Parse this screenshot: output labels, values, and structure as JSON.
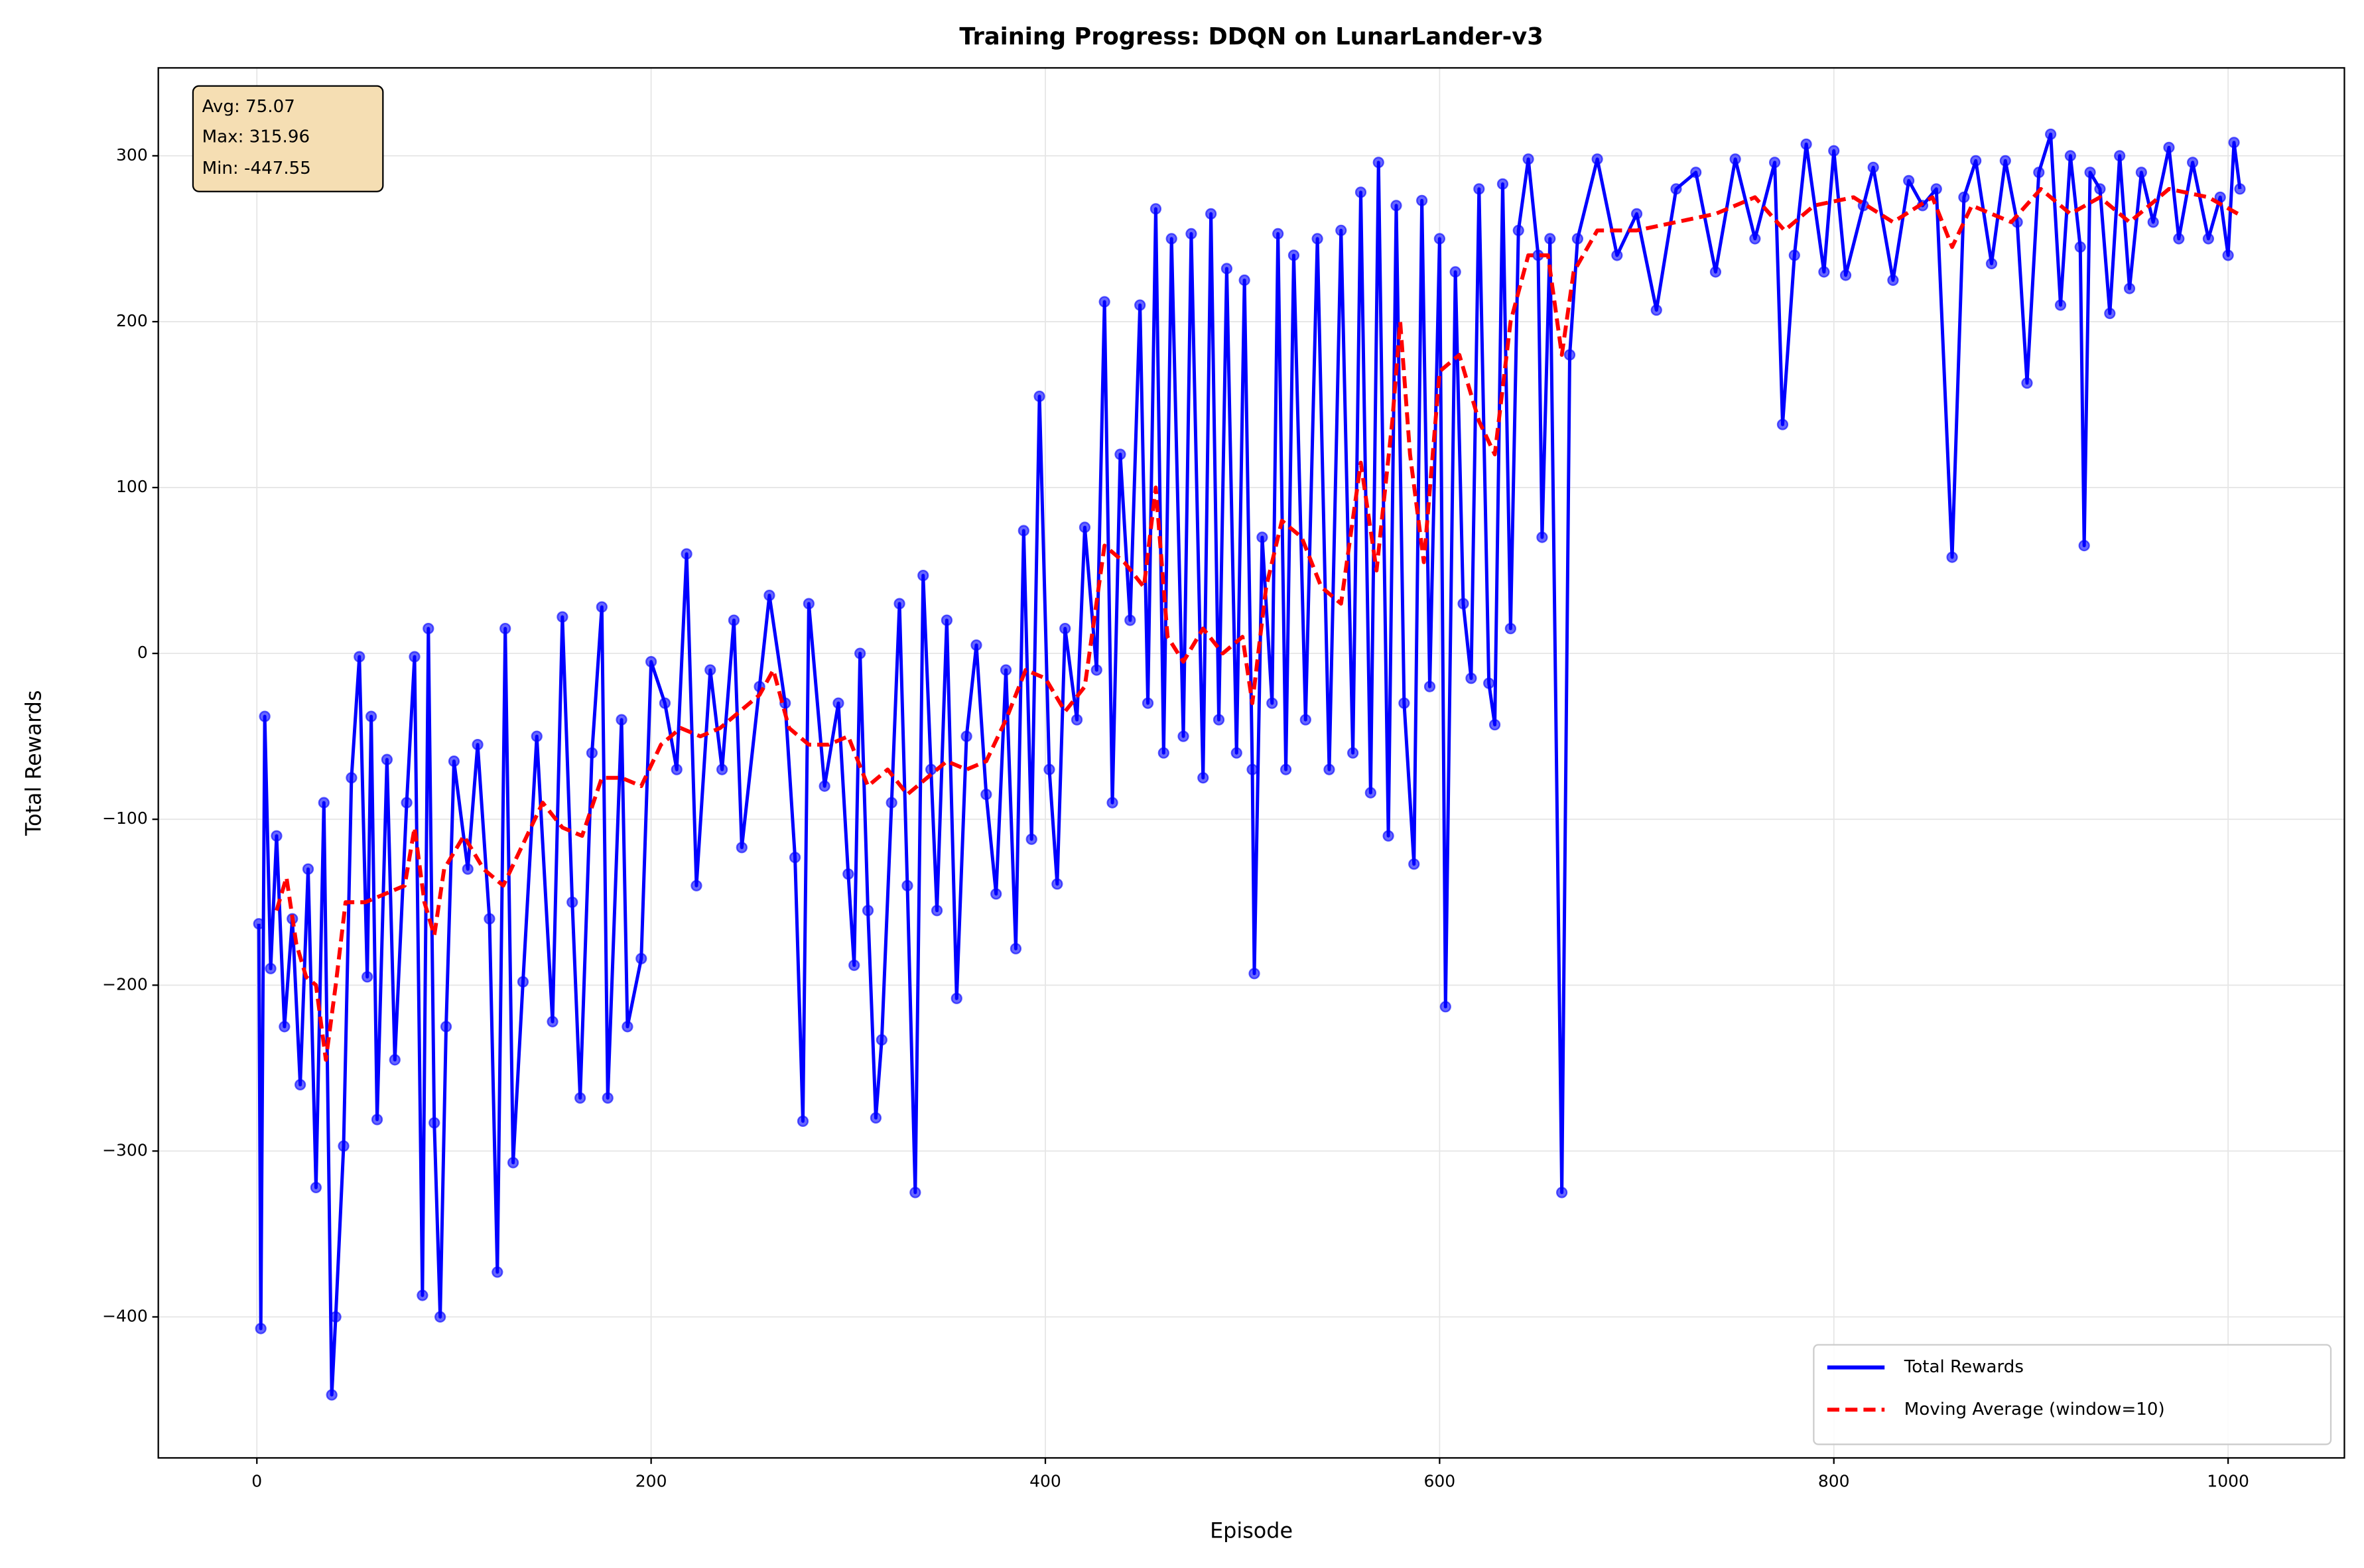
{
  "chart_data": {
    "type": "line",
    "title": "Training Progress: DDQN on LunarLander-v3",
    "x_label": "Episode",
    "y_label": "Total Rewards",
    "annotation": [
      "Avg: 75.07",
      "Max: 315.96",
      "Min: -447.55"
    ],
    "xlim": [
      -50,
      1059
    ],
    "ylim": [
      -485,
      353
    ],
    "xticks": [
      0,
      200,
      400,
      600,
      800,
      1000
    ],
    "yticks": [
      {
        "value": -400,
        "label": "−400"
      },
      {
        "value": -300,
        "label": "−300"
      },
      {
        "value": -200,
        "label": "−200"
      },
      {
        "value": -100,
        "label": "−100"
      },
      0,
      100,
      200,
      300
    ],
    "grid": true,
    "legend": "lower right",
    "series": [
      {
        "name": "Total Rewards",
        "color": "#0000ff",
        "style": "solid",
        "markers": true,
        "x": [
          1,
          2,
          4,
          7,
          10,
          14,
          18,
          22,
          26,
          30,
          34,
          38,
          40,
          44,
          48,
          52,
          56,
          58,
          61,
          66,
          70,
          76,
          80,
          84,
          87,
          90,
          93,
          96,
          100,
          107,
          112,
          118,
          122,
          126,
          130,
          135,
          142,
          150,
          155,
          160,
          164,
          170,
          175,
          178,
          185,
          188,
          195,
          200,
          207,
          213,
          218,
          223,
          230,
          236,
          242,
          246,
          255,
          260,
          268,
          273,
          277,
          280,
          288,
          295,
          300,
          303,
          306,
          310,
          314,
          317,
          322,
          326,
          330,
          334,
          338,
          342,
          345,
          350,
          355,
          360,
          365,
          370,
          375,
          380,
          385,
          389,
          393,
          397,
          402,
          406,
          410,
          416,
          420,
          426,
          430,
          434,
          438,
          443,
          448,
          452,
          456,
          460,
          464,
          470,
          474,
          480,
          484,
          488,
          492,
          497,
          501,
          505,
          506,
          510,
          515,
          518,
          522,
          526,
          532,
          538,
          544,
          550,
          556,
          560,
          565,
          569,
          574,
          578,
          582,
          587,
          591,
          595,
          600,
          603,
          608,
          612,
          616,
          620,
          625,
          628,
          632,
          636,
          640,
          645,
          650,
          652,
          656,
          662,
          666,
          670,
          680,
          690,
          700,
          710,
          720,
          730,
          740,
          750,
          760,
          770,
          774,
          780,
          786,
          795,
          800,
          806,
          815,
          820,
          830,
          838,
          845,
          852,
          860,
          866,
          872,
          880,
          887,
          893,
          898,
          904,
          910,
          915,
          920,
          925,
          927,
          930,
          935,
          940,
          945,
          950,
          956,
          962,
          970,
          975,
          982,
          990,
          996,
          1000,
          1003,
          1006
        ],
        "values": [
          -163,
          -407,
          -38,
          -190,
          -110,
          -225,
          -160,
          -260,
          -130,
          -322,
          -90,
          -447,
          -400,
          -297,
          -75,
          -2,
          -195,
          -38,
          -281,
          -64,
          -245,
          -90,
          -2,
          -387,
          15,
          -283,
          -400,
          -225,
          -65,
          -130,
          -55,
          -160,
          -373,
          15,
          -307,
          -198,
          -50,
          -222,
          22,
          -150,
          -268,
          -60,
          28,
          -268,
          -40,
          -225,
          -184,
          -5,
          -30,
          -70,
          60,
          -140,
          -10,
          -70,
          20,
          -117,
          -20,
          35,
          -30,
          -123,
          -282,
          30,
          -80,
          -30,
          -133,
          -188,
          0,
          -155,
          -280,
          -233,
          -90,
          30,
          -140,
          -325,
          47,
          -70,
          -155,
          20,
          -208,
          -50,
          5,
          -85,
          -145,
          -10,
          -178,
          74,
          -112,
          155,
          -70,
          -139,
          15,
          -40,
          76,
          -10,
          212,
          -90,
          120,
          20,
          210,
          -30,
          268,
          -60,
          250,
          -50,
          253,
          -75,
          265,
          -40,
          232,
          -60,
          225,
          -70,
          -193,
          70,
          -30,
          253,
          -70,
          240,
          -40,
          250,
          -70,
          255,
          -60,
          278,
          -84,
          296,
          -110,
          270,
          -30,
          -127,
          273,
          -20,
          250,
          -213,
          230,
          30,
          -15,
          280,
          -18,
          -43,
          283,
          15,
          255,
          298,
          240,
          70,
          250,
          -325,
          180,
          250,
          298,
          240,
          265,
          207,
          280,
          290,
          230,
          298,
          250,
          296,
          138,
          240,
          307,
          230,
          303,
          228,
          270,
          293,
          225,
          285,
          270,
          280,
          58,
          275,
          297,
          235,
          297,
          260,
          163,
          290,
          313,
          210,
          300,
          245,
          65,
          290,
          280,
          205,
          300,
          220,
          290,
          260,
          305,
          250,
          296,
          250,
          275,
          240,
          308,
          280
        ]
      },
      {
        "name": "Moving Average (window=10)",
        "color": "#ff0000",
        "style": "dashed",
        "markers": false,
        "x": [
          10,
          15,
          20,
          25,
          30,
          35,
          40,
          45,
          55,
          65,
          75,
          80,
          85,
          90,
          95,
          105,
          115,
          125,
          135,
          145,
          155,
          165,
          175,
          185,
          195,
          205,
          215,
          225,
          235,
          245,
          255,
          262,
          270,
          280,
          290,
          300,
          310,
          320,
          330,
          340,
          350,
          360,
          370,
          380,
          390,
          400,
          410,
          420,
          430,
          440,
          450,
          456,
          462,
          470,
          480,
          490,
          500,
          505,
          512,
          520,
          530,
          540,
          550,
          560,
          568,
          576,
          580,
          585,
          592,
          600,
          610,
          620,
          628,
          636,
          645,
          655,
          662,
          668,
          680,
          700,
          720,
          740,
          760,
          775,
          790,
          810,
          830,
          850,
          860,
          870,
          890,
          905,
          920,
          935,
          950,
          970,
          990,
          1005
        ],
        "values": [
          -155,
          -135,
          -175,
          -195,
          -200,
          -245,
          -200,
          -150,
          -150,
          -145,
          -140,
          -105,
          -150,
          -170,
          -130,
          -110,
          -130,
          -140,
          -115,
          -90,
          -105,
          -110,
          -75,
          -75,
          -80,
          -55,
          -45,
          -50,
          -45,
          -35,
          -25,
          -10,
          -45,
          -55,
          -55,
          -50,
          -80,
          -70,
          -85,
          -75,
          -65,
          -70,
          -65,
          -40,
          -10,
          -15,
          -35,
          -20,
          65,
          55,
          40,
          100,
          10,
          -5,
          15,
          0,
          10,
          -30,
          40,
          80,
          70,
          40,
          30,
          115,
          50,
          140,
          200,
          120,
          55,
          170,
          180,
          140,
          120,
          200,
          240,
          240,
          180,
          230,
          255,
          255,
          260,
          265,
          275,
          255,
          270,
          275,
          260,
          275,
          245,
          270,
          260,
          280,
          265,
          275,
          260,
          280,
          275,
          265
        ]
      }
    ]
  }
}
